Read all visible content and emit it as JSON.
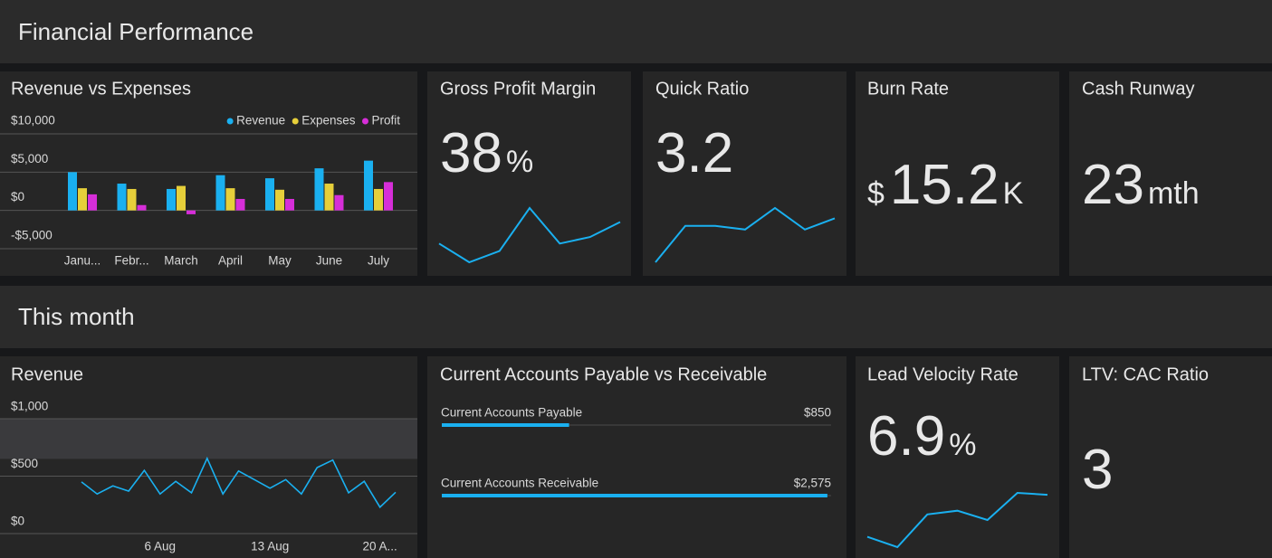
{
  "sections": [
    "Financial Performance",
    "This month"
  ],
  "revenue_vs_expenses": {
    "type": "bar",
    "title": "Revenue vs Expenses",
    "categories": [
      "Janu...",
      "Febr...",
      "March",
      "April",
      "May",
      "June",
      "July"
    ],
    "series": [
      {
        "name": "Revenue",
        "color": "#1ab0f0",
        "values": [
          5000,
          3500,
          2800,
          4600,
          4200,
          5500,
          6500
        ]
      },
      {
        "name": "Expenses",
        "color": "#e6cf3a",
        "values": [
          2900,
          2800,
          3200,
          2900,
          2700,
          3500,
          2800
        ]
      },
      {
        "name": "Profit",
        "color": "#d62ed8",
        "values": [
          2100,
          700,
          -500,
          1500,
          1500,
          2000,
          3700
        ]
      }
    ],
    "ylim": [
      -5000,
      10000
    ],
    "yticks": [
      {
        "value": -5000,
        "label": "-$5,000"
      },
      {
        "value": 0,
        "label": "$0"
      },
      {
        "value": 5000,
        "label": "$5,000"
      },
      {
        "value": 10000,
        "label": "$10,000"
      }
    ],
    "grid": true,
    "legend": "top-right"
  },
  "kpis": [
    {
      "title": "Gross Profit Margin",
      "value": 38,
      "unit": "%",
      "sparkline": {
        "type": "line",
        "color": "#1ab0f0",
        "values": [
          20,
          0,
          12,
          58,
          20,
          27,
          43
        ]
      }
    },
    {
      "title": "Quick Ratio",
      "value": 3.2,
      "sparkline": {
        "type": "line",
        "color": "#1ab0f0",
        "values": [
          0,
          39,
          39,
          35,
          58,
          35,
          47
        ]
      }
    },
    {
      "title": "Burn Rate",
      "prefix": "$",
      "value": 15.2,
      "unit": "K"
    },
    {
      "title": "Cash Runway",
      "value": 23,
      "unit": "mth"
    },
    {
      "title": "Lead Velocity Rate",
      "value": 6.9,
      "unit": "%",
      "sparkline": {
        "type": "line",
        "color": "#1ab0f0",
        "values": [
          11,
          0,
          35,
          39,
          29,
          58,
          56
        ]
      }
    },
    {
      "title": "LTV: CAC Ratio",
      "value": 3
    }
  ],
  "revenue": {
    "type": "line",
    "title": "Revenue",
    "categories": [
      null,
      null,
      null,
      null,
      null,
      "6 Aug",
      null,
      null,
      null,
      null,
      null,
      null,
      "13 Aug",
      null,
      null,
      null,
      null,
      null,
      null,
      "20 A...",
      null
    ],
    "series": [
      {
        "name": "Revenue",
        "color": "#1ab0f0",
        "values": [
          450,
          345,
          415,
          370,
          550,
          345,
          455,
          355,
          655,
          345,
          545,
          470,
          395,
          470,
          345,
          575,
          640,
          355,
          455,
          230,
          360
        ]
      }
    ],
    "band": [
      650,
      1000
    ],
    "ylim": [
      0,
      1000
    ],
    "yticks": [
      {
        "value": 0,
        "label": "$0"
      },
      {
        "value": 500,
        "label": "$500"
      },
      {
        "value": 1000,
        "label": "$1,000"
      }
    ],
    "grid": true
  },
  "accounts": {
    "type": "bar",
    "orientation": "horizontal",
    "title": "Current Accounts Payable vs Receivable",
    "categories": [
      "Current Accounts Payable",
      "Current Accounts Receivable"
    ],
    "values": [
      850,
      2575
    ],
    "value_labels": [
      "$850",
      "$2,575"
    ],
    "xlim": [
      0,
      2600
    ],
    "color": "#1ab0f0"
  }
}
